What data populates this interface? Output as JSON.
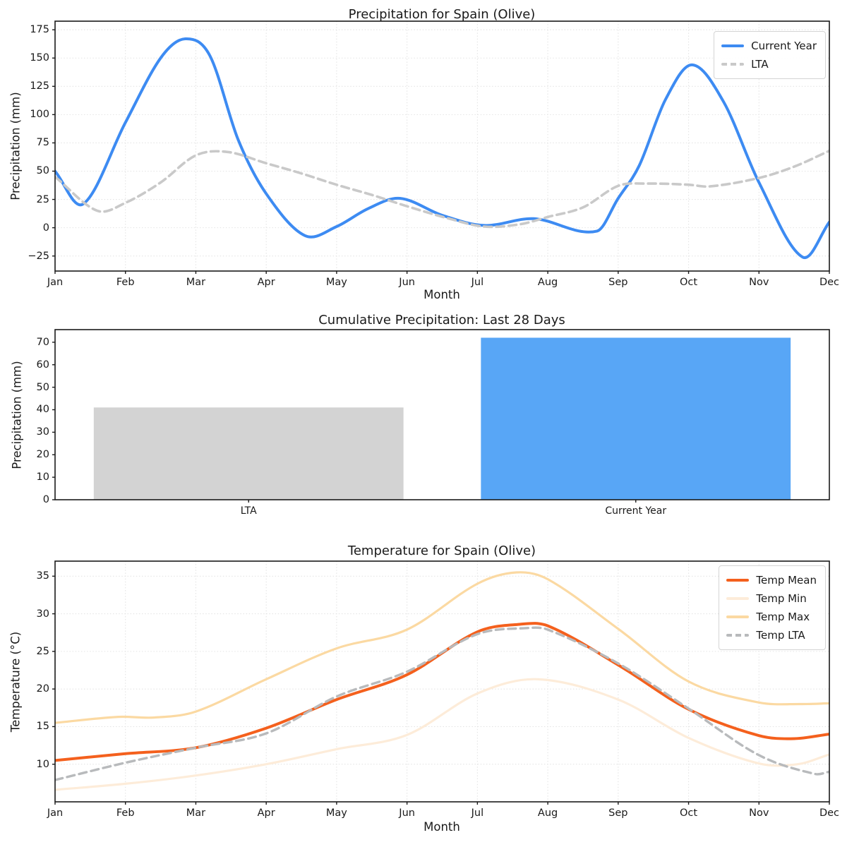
{
  "chart_data": [
    {
      "id": "precip_annual",
      "type": "line",
      "title": "Precipitation for Spain (Olive)",
      "xlabel": "Month",
      "ylabel": "Precipitation (mm)",
      "x_tick_labels": [
        "Jan",
        "Feb",
        "Mar",
        "Apr",
        "May",
        "Jun",
        "Jul",
        "Aug",
        "Sep",
        "Oct",
        "Nov",
        "Dec"
      ],
      "y_ticks": [
        -25,
        0,
        25,
        50,
        75,
        100,
        125,
        150,
        175
      ],
      "xlim": [
        0,
        11
      ],
      "ylim": [
        -38.3,
        182.6
      ],
      "grid": true,
      "legend_position": "top-right",
      "series": [
        {
          "name": "Current Year",
          "color": "#3d8bf2",
          "dash": false,
          "width": 4,
          "points": [
            [
              0,
              50
            ],
            [
              0.4,
              21
            ],
            [
              1,
              93
            ],
            [
              1.5,
              150
            ],
            [
              1.85,
              167
            ],
            [
              2.2,
              152
            ],
            [
              2.6,
              78
            ],
            [
              3,
              30
            ],
            [
              3.55,
              -7
            ],
            [
              4,
              1
            ],
            [
              4.45,
              17
            ],
            [
              4.9,
              26
            ],
            [
              5.5,
              11
            ],
            [
              6.1,
              2
            ],
            [
              6.8,
              8
            ],
            [
              7.7,
              -3
            ],
            [
              8,
              26
            ],
            [
              8.3,
              55
            ],
            [
              8.67,
              113
            ],
            [
              9.05,
              144
            ],
            [
              9.5,
              111
            ],
            [
              10,
              40
            ],
            [
              10.62,
              -26
            ],
            [
              11,
              5
            ]
          ]
        },
        {
          "name": "LTA",
          "color": "#c9c9c9",
          "dash": true,
          "width": 3.6,
          "points": [
            [
              0,
              45
            ],
            [
              0.6,
              15
            ],
            [
              1,
              22
            ],
            [
              1.5,
              40
            ],
            [
              2,
              64
            ],
            [
              2.45,
              67
            ],
            [
              3,
              57
            ],
            [
              3.5,
              48
            ],
            [
              4,
              38
            ],
            [
              4.5,
              29
            ],
            [
              5,
              19
            ],
            [
              5.6,
              8
            ],
            [
              6.1,
              1
            ],
            [
              6.6,
              3
            ],
            [
              7,
              9.5
            ],
            [
              7.5,
              18
            ],
            [
              8,
              37
            ],
            [
              8.4,
              39
            ],
            [
              9,
              38
            ],
            [
              9.3,
              36.5
            ],
            [
              10,
              44
            ],
            [
              10.5,
              54
            ],
            [
              11,
              68
            ]
          ]
        }
      ]
    },
    {
      "id": "precip_cumulative",
      "type": "bar",
      "title": "Cumulative Precipitation: Last 28 Days",
      "xlabel": "",
      "ylabel": "Precipitation (mm)",
      "categories": [
        "LTA",
        "Current Year"
      ],
      "values": [
        41,
        72
      ],
      "bar_colors": [
        "#d3d3d3",
        "#58a6f6"
      ],
      "y_ticks": [
        0,
        10,
        20,
        30,
        40,
        50,
        60,
        70
      ],
      "ylim": [
        0,
        75.6
      ],
      "grid": false
    },
    {
      "id": "temp_annual",
      "type": "line",
      "title": "Temperature for Spain (Olive)",
      "xlabel": "Month",
      "ylabel": "Temperature (°C)",
      "x_tick_labels": [
        "Jan",
        "Feb",
        "Mar",
        "Apr",
        "May",
        "Jun",
        "Jul",
        "Aug",
        "Sep",
        "Oct",
        "Nov",
        "Dec"
      ],
      "y_ticks": [
        10,
        15,
        20,
        25,
        30,
        35
      ],
      "xlim": [
        0,
        11
      ],
      "ylim": [
        5.0,
        37.0
      ],
      "grid": true,
      "legend_position": "top-right",
      "series": [
        {
          "name": "Temp Mean",
          "color": "#f4601d",
          "dash": false,
          "width": 4,
          "points": [
            [
              0,
              10.5
            ],
            [
              1,
              11.4
            ],
            [
              2,
              12.2
            ],
            [
              3,
              14.8
            ],
            [
              4,
              18.6
            ],
            [
              5,
              21.9
            ],
            [
              6,
              27.6
            ],
            [
              6.6,
              28.6
            ],
            [
              7,
              28.4
            ],
            [
              8,
              23.2
            ],
            [
              9,
              17.3
            ],
            [
              10,
              13.8
            ],
            [
              10.5,
              13.4
            ],
            [
              11,
              14.0
            ]
          ]
        },
        {
          "name": "Temp Min",
          "color": "#fdecd9",
          "dash": false,
          "width": 3.2,
          "points": [
            [
              0,
              6.6
            ],
            [
              1,
              7.4
            ],
            [
              2,
              8.5
            ],
            [
              3,
              10.0
            ],
            [
              4,
              12.0
            ],
            [
              5,
              13.9
            ],
            [
              6,
              19.4
            ],
            [
              6.85,
              21.3
            ],
            [
              8,
              18.6
            ],
            [
              9,
              13.5
            ],
            [
              10,
              10.1
            ],
            [
              10.55,
              10.0
            ],
            [
              11,
              11.3
            ]
          ]
        },
        {
          "name": "Temp Max",
          "color": "#fbd9a2",
          "dash": false,
          "width": 3.2,
          "points": [
            [
              0,
              15.5
            ],
            [
              0.9,
              16.3
            ],
            [
              1.4,
              16.2
            ],
            [
              2,
              17.0
            ],
            [
              3,
              21.3
            ],
            [
              4,
              25.4
            ],
            [
              5,
              27.9
            ],
            [
              6,
              34.0
            ],
            [
              6.55,
              35.5
            ],
            [
              7,
              34.6
            ],
            [
              8,
              28.0
            ],
            [
              9,
              21.0
            ],
            [
              10,
              18.2
            ],
            [
              10.6,
              18.0
            ],
            [
              11,
              18.1
            ]
          ]
        },
        {
          "name": "Temp LTA",
          "color": "#b8babc",
          "dash": true,
          "width": 3.4,
          "points": [
            [
              0,
              7.9
            ],
            [
              1,
              10.2
            ],
            [
              2,
              12.2
            ],
            [
              3,
              14.1
            ],
            [
              4,
              19.0
            ],
            [
              5,
              22.3
            ],
            [
              6,
              27.3
            ],
            [
              6.7,
              28.1
            ],
            [
              7,
              27.9
            ],
            [
              8,
              23.4
            ],
            [
              9,
              17.4
            ],
            [
              10,
              11.2
            ],
            [
              10.8,
              8.7
            ],
            [
              11,
              9.0
            ]
          ]
        }
      ]
    }
  ]
}
